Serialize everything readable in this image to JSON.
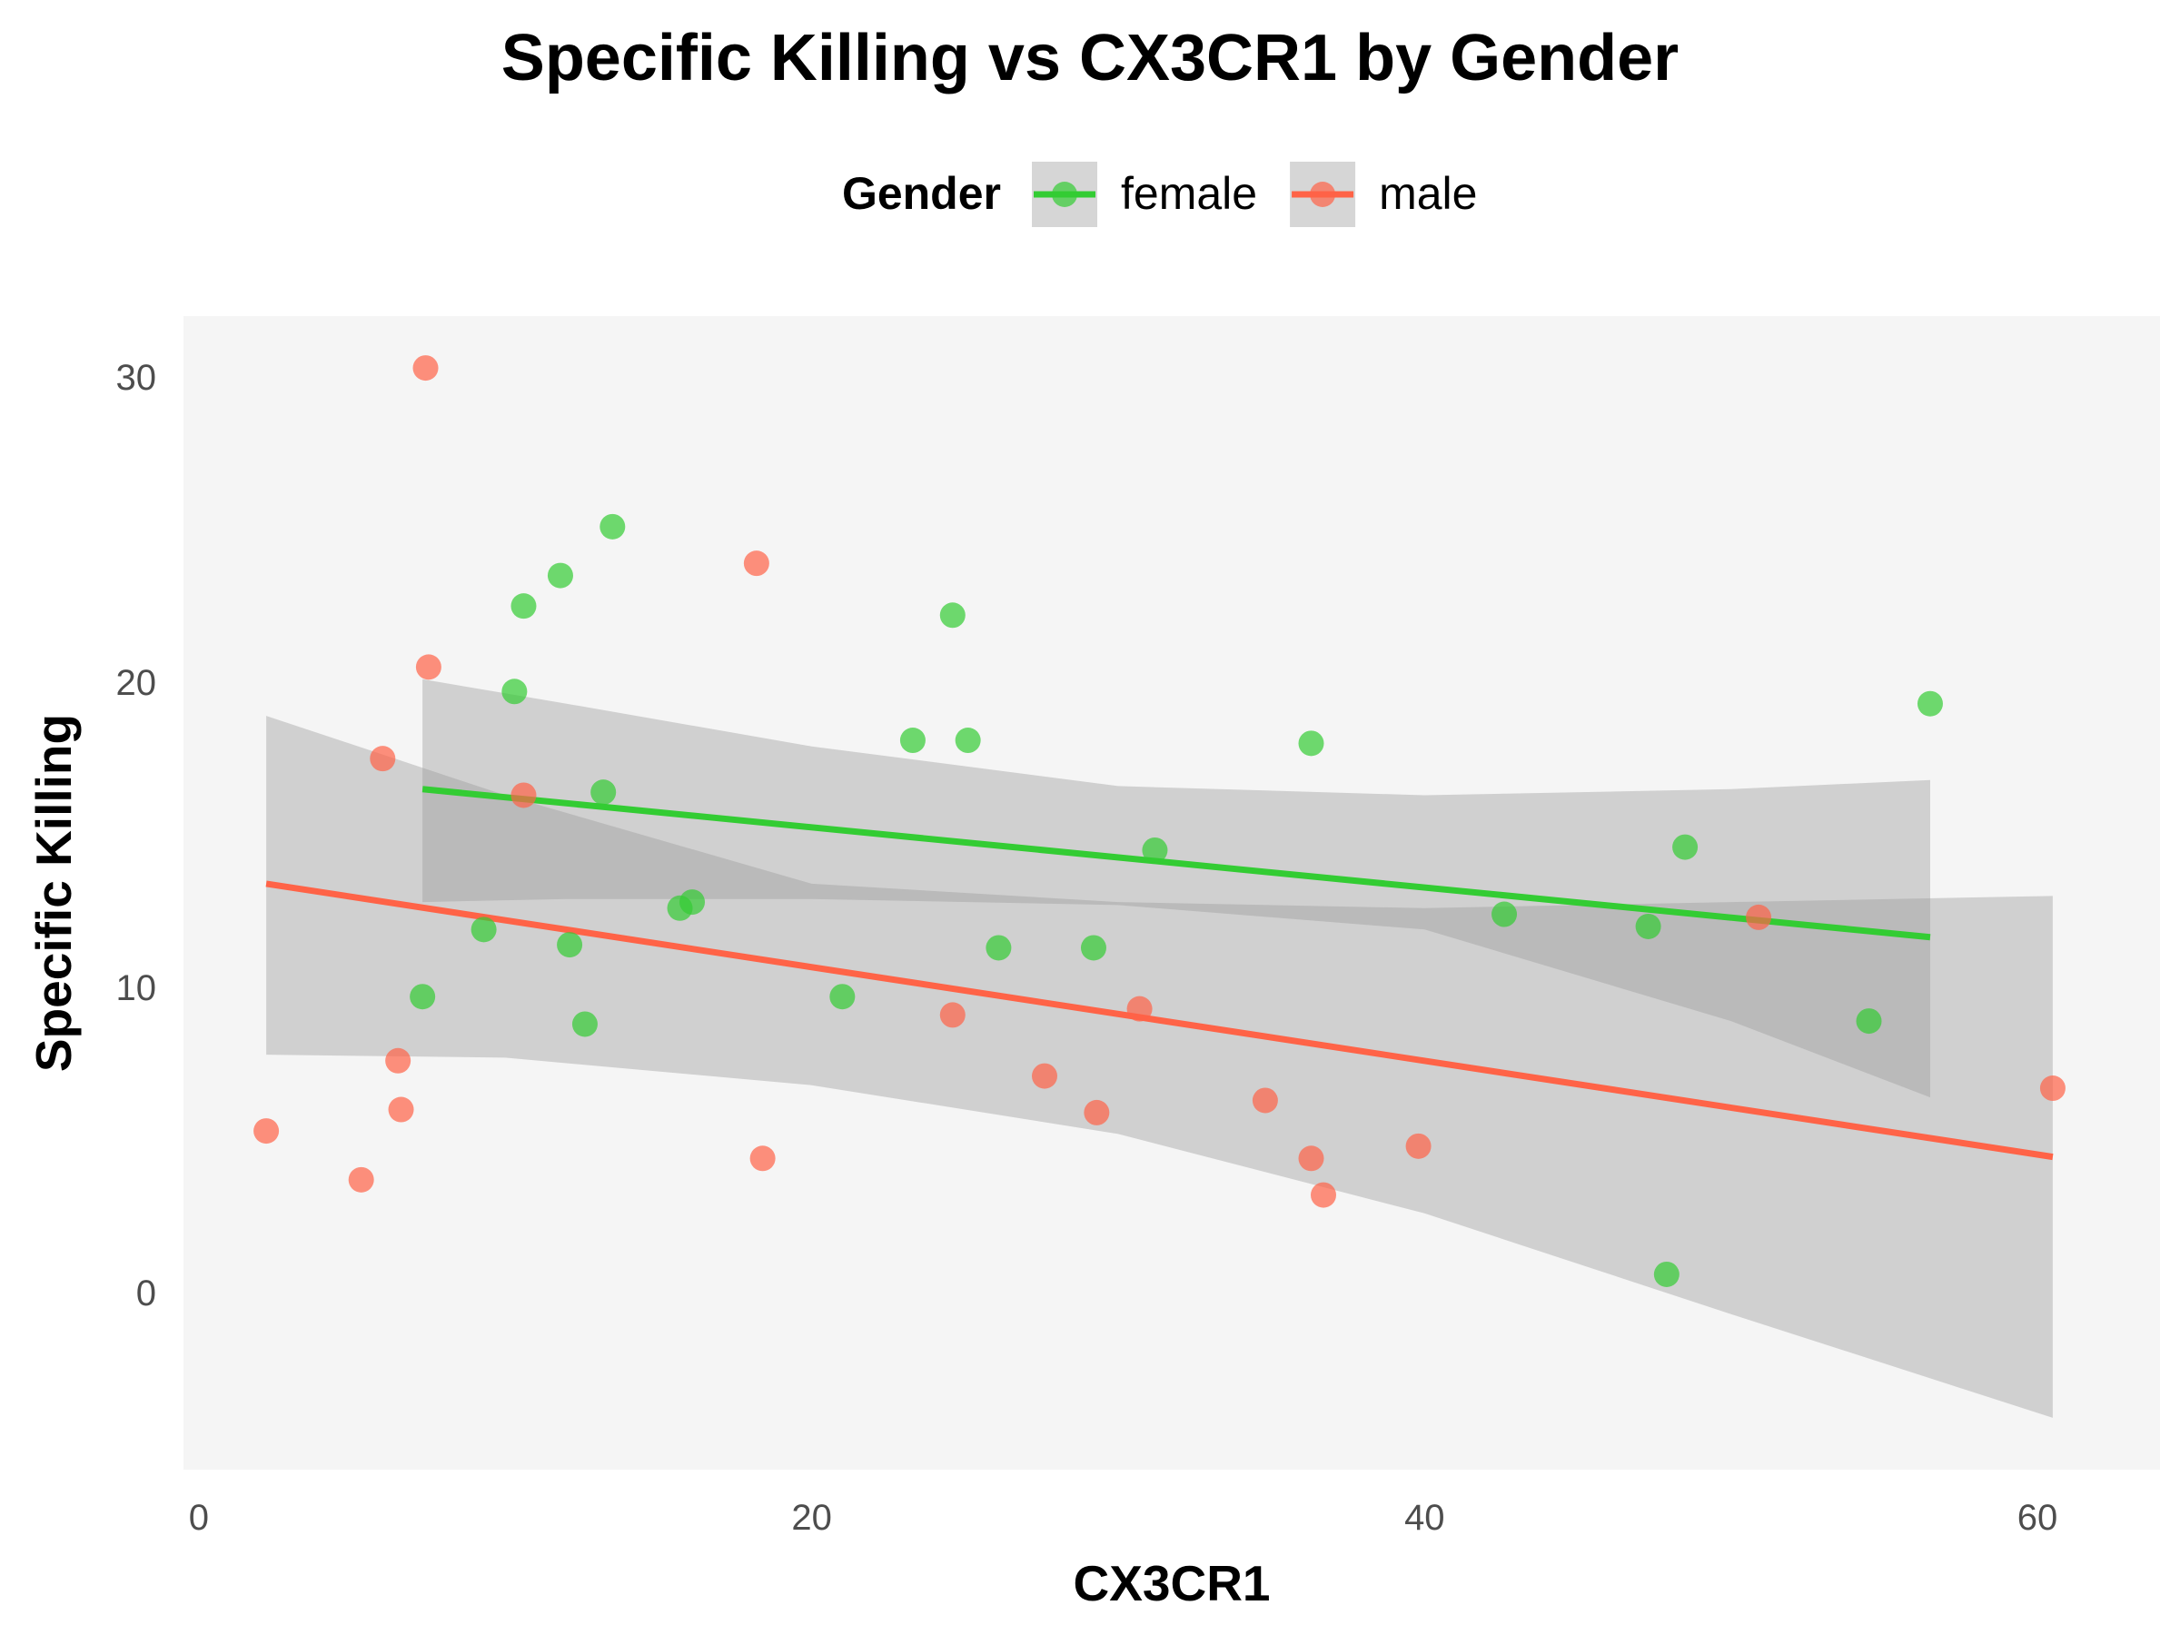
{
  "chart_data": {
    "type": "scatter",
    "title": "Specific Killing vs CX3CR1 by Gender",
    "xlabel": "CX3CR1",
    "ylabel": "Specific Killing",
    "xlim": [
      -0.5,
      64
    ],
    "ylim": [
      -5.8,
      32
    ],
    "x_ticks": [
      0,
      20,
      40,
      60
    ],
    "y_ticks": [
      0,
      10,
      20,
      30
    ],
    "grid": false,
    "panel_background": "#f5f5f5",
    "legend": {
      "title": "Gender",
      "position": "top"
    },
    "series": [
      {
        "name": "female",
        "color": "#33cc33",
        "points": [
          [
            7.3,
            9.7
          ],
          [
            9.3,
            11.9
          ],
          [
            10.3,
            19.7
          ],
          [
            10.6,
            22.5
          ],
          [
            11.8,
            23.5
          ],
          [
            12.1,
            11.4
          ],
          [
            12.6,
            8.8
          ],
          [
            13.2,
            16.4
          ],
          [
            13.5,
            25.1
          ],
          [
            15.7,
            12.6
          ],
          [
            16.1,
            12.8
          ],
          [
            21.0,
            9.7
          ],
          [
            23.3,
            18.1
          ],
          [
            24.6,
            22.2
          ],
          [
            25.1,
            18.1
          ],
          [
            26.1,
            11.3
          ],
          [
            29.2,
            11.3
          ],
          [
            31.2,
            14.5
          ],
          [
            36.3,
            18.0
          ],
          [
            42.6,
            12.4
          ],
          [
            47.3,
            12.0
          ],
          [
            47.9,
            0.6
          ],
          [
            48.5,
            14.6
          ],
          [
            54.5,
            8.9
          ],
          [
            56.5,
            19.3
          ]
        ],
        "trend": {
          "x": [
            7.3,
            56.5
          ],
          "y": [
            16.5,
            11.65
          ]
        },
        "ci": {
          "x": [
            7.3,
            12,
            20,
            30,
            40,
            50,
            56.5
          ],
          "lower": [
            12.8,
            12.9,
            12.9,
            12.7,
            11.9,
            8.9,
            6.4
          ],
          "upper": [
            20.1,
            19.3,
            17.9,
            16.6,
            16.3,
            16.5,
            16.8
          ]
        }
      },
      {
        "name": "male",
        "color": "#ff6347",
        "points": [
          [
            2.2,
            5.3
          ],
          [
            5.3,
            3.7
          ],
          [
            6.0,
            17.5
          ],
          [
            6.5,
            7.6
          ],
          [
            6.6,
            6.0
          ],
          [
            7.4,
            30.3
          ],
          [
            7.5,
            20.5
          ],
          [
            10.6,
            16.3
          ],
          [
            18.2,
            23.9
          ],
          [
            18.4,
            4.4
          ],
          [
            24.6,
            9.1
          ],
          [
            27.6,
            7.1
          ],
          [
            29.3,
            5.9
          ],
          [
            30.7,
            9.3
          ],
          [
            34.8,
            6.3
          ],
          [
            36.3,
            4.4
          ],
          [
            36.7,
            3.2
          ],
          [
            39.8,
            4.8
          ],
          [
            50.9,
            12.3
          ],
          [
            60.5,
            6.7
          ]
        ],
        "trend": {
          "x": [
            2.2,
            60.5
          ],
          "y": [
            13.4,
            4.45
          ]
        },
        "ci": {
          "x": [
            2.2,
            10,
            20,
            30,
            40,
            50,
            60.5
          ],
          "lower": [
            7.8,
            7.7,
            6.8,
            5.2,
            2.6,
            -0.7,
            -4.1
          ],
          "upper": [
            18.9,
            16.3,
            13.4,
            12.8,
            12.6,
            12.8,
            13.0
          ]
        }
      }
    ]
  }
}
